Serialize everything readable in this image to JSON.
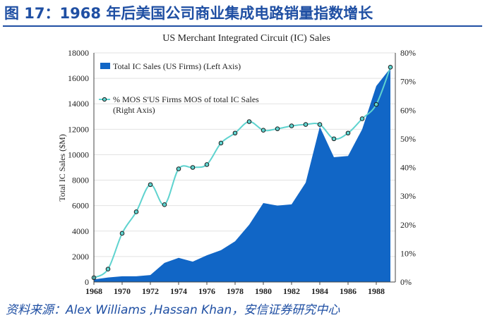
{
  "figure": {
    "title": "图 17：1968 年后美国公司商业集成电路销量指数增长",
    "source": "资料来源：Alex Williams ,Hassan Khan，安信证券研究中心"
  },
  "colors": {
    "area": "#1166c6",
    "line": "#5fd3cf",
    "marker_fill": "#5fd3cf",
    "marker_stroke": "#1a1a1a",
    "title_blue": "#1f4fa3"
  },
  "chart_data": {
    "type": "area",
    "title": "US Merchant Integrated Circuit (IC) Sales",
    "ylabel": "Total IC Sales ($M)",
    "ylim": [
      0,
      18000
    ],
    "y2lim": [
      0,
      80
    ],
    "yticks": [
      "0",
      "2000",
      "4000",
      "6000",
      "8000",
      "10000",
      "12000",
      "14000",
      "16000",
      "18000"
    ],
    "y2ticks": [
      "0%",
      "10%",
      "20%",
      "30%",
      "40%",
      "50%",
      "60%",
      "70%",
      "80%"
    ],
    "xticks": [
      "1968",
      "1970",
      "1972",
      "1974",
      "1976",
      "1978",
      "1980",
      "1982",
      "1984",
      "1986",
      "1988"
    ],
    "grid": true,
    "legend_position": "top-left",
    "series": [
      {
        "name": "Total IC Sales (US Firms) (Left Axis)",
        "type": "area",
        "axis": "left",
        "x": [
          1968,
          1969,
          1970,
          1971,
          1972,
          1973,
          1974,
          1975,
          1976,
          1977,
          1978,
          1979,
          1980,
          1981,
          1982,
          1983,
          1984,
          1985,
          1986,
          1987,
          1988,
          1989
        ],
        "values": [
          200,
          350,
          450,
          450,
          550,
          1500,
          1900,
          1600,
          2100,
          2500,
          3200,
          4500,
          6200,
          6000,
          6100,
          7800,
          12200,
          9800,
          9900,
          12000,
          15400,
          16800
        ]
      },
      {
        "name": "% MOS S'US Firms MOS of total IC Sales (Right Axis)",
        "type": "line",
        "axis": "right",
        "x": [
          1968,
          1969,
          1970,
          1971,
          1972,
          1973,
          1974,
          1975,
          1976,
          1977,
          1978,
          1979,
          1980,
          1981,
          1982,
          1983,
          1984,
          1985,
          1986,
          1987,
          1988,
          1989
        ],
        "values": [
          1.5,
          4.5,
          17,
          24.5,
          34,
          27,
          39.5,
          40,
          41,
          48.5,
          52,
          56,
          53,
          53.5,
          54.5,
          55,
          55,
          50,
          52,
          57,
          62,
          75
        ]
      }
    ]
  }
}
